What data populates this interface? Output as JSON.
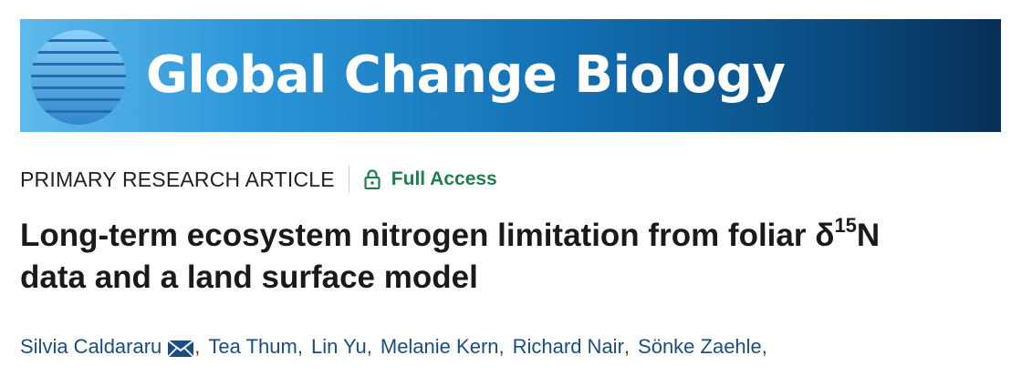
{
  "banner": {
    "journal_name": "Global Change Biology",
    "logo_icon": "globe-stripes-icon",
    "colors": {
      "gradient_start": "#5fb9ec",
      "gradient_end": "#072f55",
      "text": "#ffffff"
    }
  },
  "meta": {
    "article_type": "PRIMARY RESEARCH ARTICLE",
    "access_icon": "lock-open-icon",
    "access_label": "Full Access",
    "access_color": "#1e7f4d"
  },
  "title": {
    "main": "Long-term ecosystem nitrogen limitation from foliar δ",
    "superscript": "15",
    "after_sup": "N",
    "line2": "data and a land surface model"
  },
  "authors": [
    {
      "name": "Silvia Caldararu",
      "corresponding": true,
      "icon": "envelope-icon"
    },
    {
      "name": "Tea Thum"
    },
    {
      "name": "Lin Yu"
    },
    {
      "name": "Melanie Kern"
    },
    {
      "name": "Richard Nair"
    },
    {
      "name": "Sönke Zaehle"
    }
  ],
  "author_separator": ","
}
